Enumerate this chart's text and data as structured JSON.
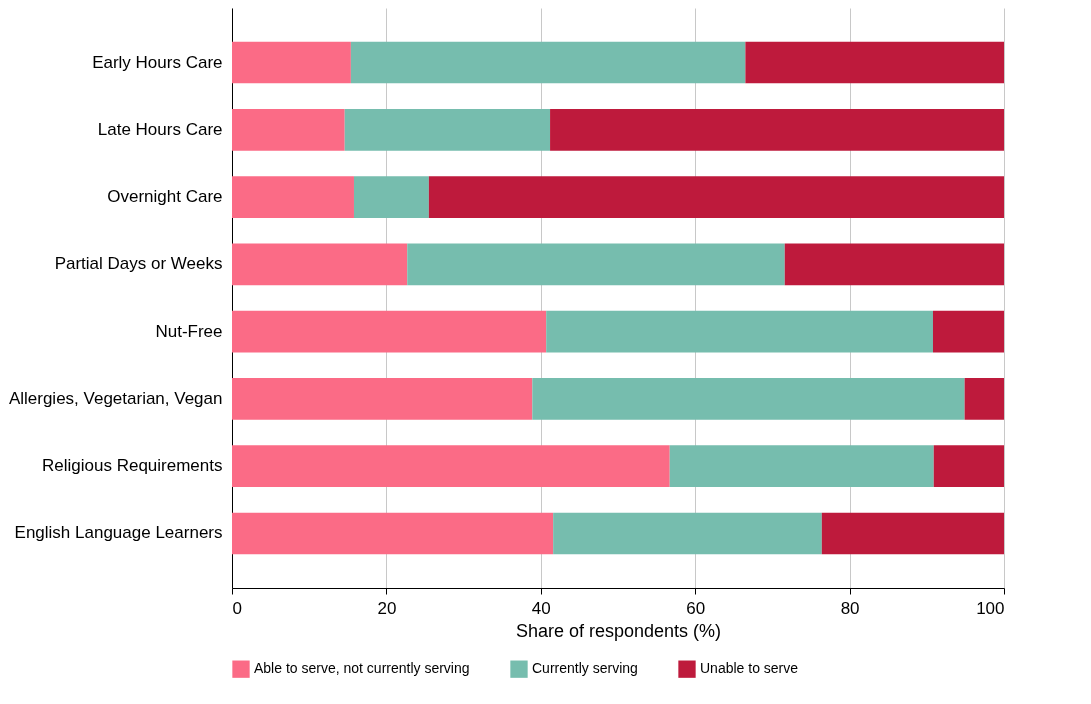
{
  "chart_data": {
    "type": "bar",
    "orientation": "horizontal",
    "stacked": true,
    "xlabel": "Share of respondents (%)",
    "categories": [
      "Early Hours Care",
      "Late Hours Care",
      "Overnight Care",
      "Partial Days or Weeks",
      "Nut-Free",
      "Allergies, Vegetarian, Vegan",
      "Religious Requirements",
      "English Language Learners"
    ],
    "series": [
      {
        "name": "Able to serve, not currently serving",
        "color": "#fb6b86",
        "values": [
          15.4,
          14.6,
          15.8,
          22.7,
          40.7,
          38.9,
          56.7,
          41.6
        ]
      },
      {
        "name": "Currently serving",
        "color": "#76bdae",
        "values": [
          51.1,
          26.6,
          9.7,
          48.9,
          50.1,
          56.0,
          34.2,
          34.8
        ]
      },
      {
        "name": "Unable to serve",
        "color": "#be1a3c",
        "values": [
          33.5,
          58.8,
          74.5,
          28.4,
          9.2,
          5.1,
          9.1,
          23.6
        ]
      }
    ],
    "xlim": [
      0,
      100
    ],
    "xticks": [
      0,
      20,
      40,
      60,
      80,
      100
    ],
    "grid": "x",
    "legend": "bottom"
  }
}
